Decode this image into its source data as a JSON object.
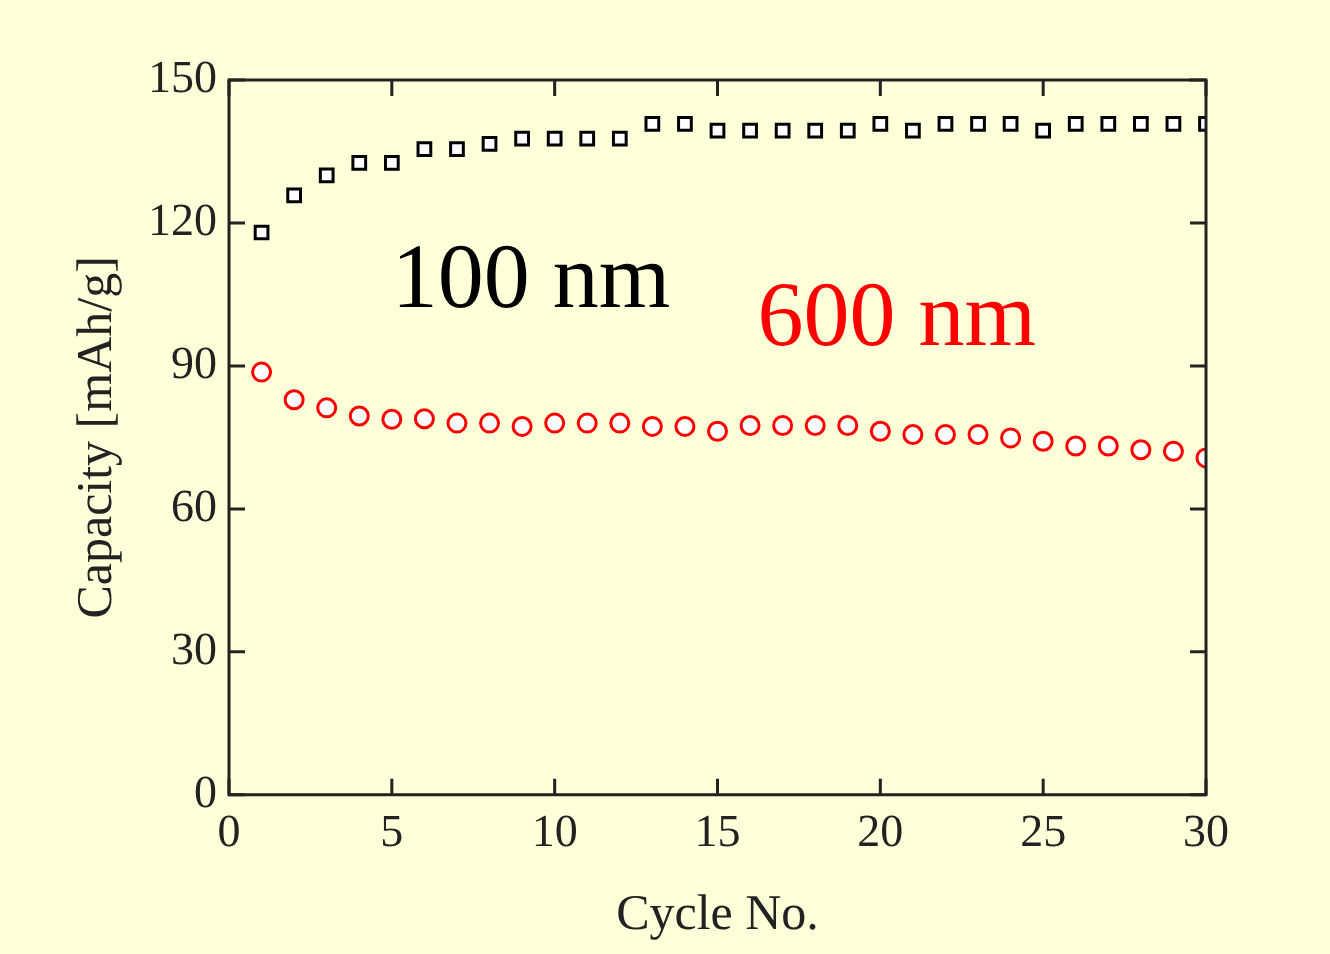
{
  "chart_data": {
    "type": "scatter",
    "xlabel": "Cycle No.",
    "ylabel": "Capacity [mAh/g]",
    "x": [
      1,
      2,
      3,
      4,
      5,
      6,
      7,
      8,
      9,
      10,
      11,
      12,
      13,
      14,
      15,
      16,
      17,
      18,
      19,
      20,
      21,
      22,
      23,
      24,
      25,
      26,
      27,
      28,
      29,
      30
    ],
    "series": [
      {
        "name": "100 nm",
        "color": "#000000",
        "marker": "square",
        "values": [
          118,
          125.8,
          130,
          132.6,
          132.6,
          135.5,
          135.5,
          136.6,
          137.7,
          137.7,
          137.7,
          137.7,
          140.8,
          140.8,
          139.4,
          139.4,
          139.4,
          139.4,
          139.4,
          140.8,
          139.4,
          140.8,
          140.8,
          140.8,
          139.4,
          140.8,
          140.8,
          140.8,
          140.8,
          140.8
        ]
      },
      {
        "name": "600 nm",
        "color": "#ff0000",
        "marker": "circle",
        "values": [
          88.7,
          82.9,
          81.2,
          79.5,
          78.8,
          78.9,
          78,
          78,
          77.3,
          78,
          78,
          78,
          77.3,
          77.3,
          76.3,
          77.5,
          77.5,
          77.5,
          77.5,
          76.3,
          75.6,
          75.6,
          75.6,
          74.9,
          74.2,
          73.2,
          73.2,
          72.4,
          72.1,
          70.7
        ]
      }
    ],
    "xlim": [
      0,
      30
    ],
    "xticks": [
      0,
      5,
      10,
      15,
      20,
      25,
      30
    ],
    "ylim": [
      0,
      150
    ],
    "yticks": [
      0,
      30,
      60,
      90,
      120,
      150
    ],
    "grid": false,
    "legend": false
  }
}
